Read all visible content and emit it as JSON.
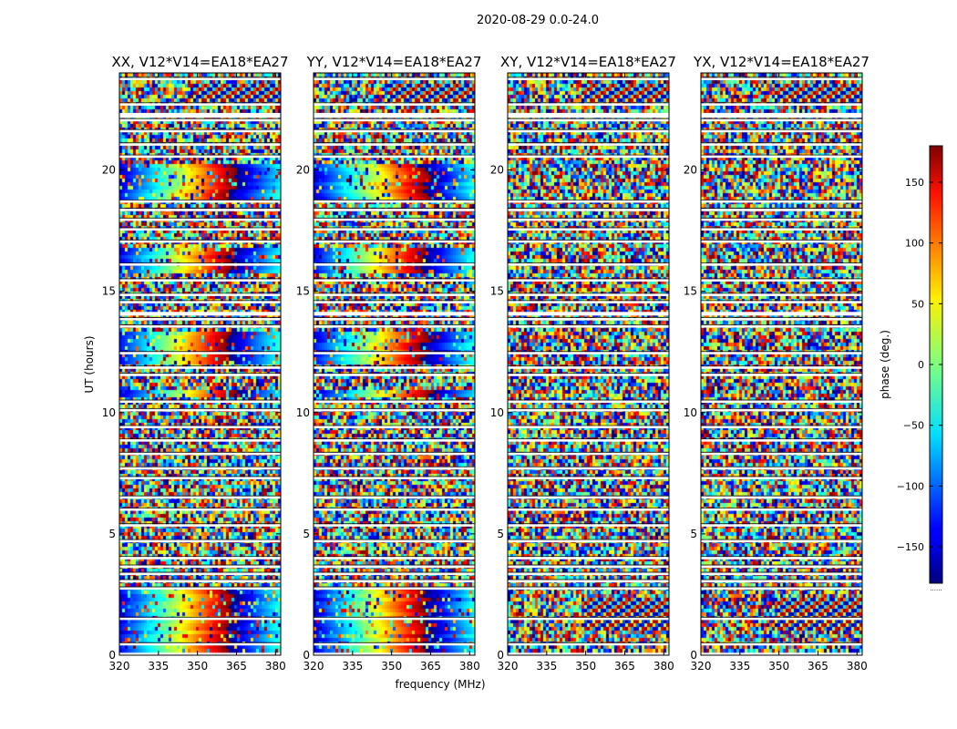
{
  "chart_data": {
    "type": "heatmap",
    "suptitle": "2020-08-29 0.0-24.0",
    "xlabel": "frequency (MHz)",
    "ylabel": "UT (hours)",
    "xlim": [
      320,
      382
    ],
    "ylim": [
      0,
      24
    ],
    "xticks": [
      320,
      335,
      350,
      365,
      380
    ],
    "yticks": [
      0,
      5,
      10,
      15,
      20
    ],
    "colorbar": {
      "label": "phase (deg.)",
      "range": [
        -180,
        180
      ],
      "ticks": [
        150,
        100,
        50,
        0,
        -50,
        -100,
        -150
      ],
      "tick_labels": [
        "150",
        "100",
        "50",
        "0",
        "−50",
        "−100",
        "−150"
      ],
      "colormap": "jet",
      "extra_label": "......"
    },
    "panels": [
      {
        "title": "XX, V12*V14=EA18*EA27",
        "coherent_hours": [
          [
            0,
            2.8
          ],
          [
            10.6,
            11.0
          ],
          [
            12.0,
            13.4
          ],
          [
            15.8,
            16.8
          ],
          [
            18.8,
            20.3
          ]
        ],
        "fringe_hours": [
          [
            22.8,
            23.6
          ]
        ]
      },
      {
        "title": "YY, V12*V14=EA18*EA27",
        "coherent_hours": [
          [
            0,
            2.8
          ],
          [
            10.6,
            11.0
          ],
          [
            12.0,
            13.4
          ],
          [
            15.8,
            16.8
          ],
          [
            18.8,
            20.3
          ]
        ],
        "fringe_hours": [
          [
            22.8,
            23.6
          ]
        ]
      },
      {
        "title": "XY, V12*V14=EA18*EA27",
        "coherent_hours": [],
        "fringe_hours": [
          [
            22.8,
            23.6
          ],
          [
            1.0,
            2.4
          ]
        ]
      },
      {
        "title": "YX, V12*V14=EA18*EA27",
        "coherent_hours": [],
        "fringe_hours": [
          [
            22.8,
            23.6
          ],
          [
            1.0,
            2.4
          ]
        ]
      }
    ],
    "flagged_hours": [
      0.45,
      1.5,
      2.75,
      3.05,
      3.35,
      3.65,
      4.0,
      4.7,
      5.35,
      6.0,
      6.5,
      7.3,
      7.7,
      8.3,
      8.85,
      9.4,
      10.1,
      10.45,
      11.55,
      11.85,
      12.45,
      13.55,
      13.85,
      14.05,
      14.55,
      14.85,
      15.45,
      16.1,
      17.05,
      17.55,
      17.95,
      18.35,
      18.7,
      20.55,
      21.05,
      21.6,
      22.05,
      22.7,
      23.75
    ]
  }
}
